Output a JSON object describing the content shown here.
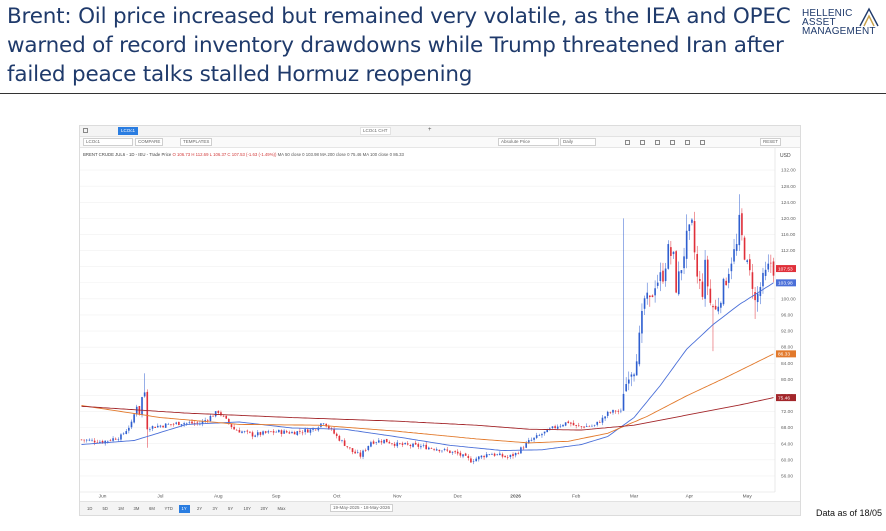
{
  "slide": {
    "title": "Brent: Oil price increased but remained very volatile, as the IEA and OPEC warned of record inventory drawdowns while Trump threatened Iran after failed peace talks stalled Hormuz reopening",
    "logo_lines": [
      "HELLENIC",
      "ASSET",
      "MANAGEMENT"
    ],
    "footnote": "Data as of 18/05"
  },
  "platform": {
    "top_tabs": [
      "LCOc1",
      "LCOc1 CHT"
    ],
    "ticker_field": "LCOc1",
    "compare_label": "COMPARE",
    "templates_label": "TEMPLATES",
    "price_mode": "Absolute Price",
    "interval": "Daily",
    "reset_label": "RESET",
    "legend": {
      "instrument": "BRENT CRUDE JUL6 - 1D - IEU - Trade Price",
      "ohlc": "O 106.73  H 112.69  L 106.37  C 107.53  (-1.63 (-1.49%))",
      "ma_text": "MA 50 close 0  103.98   MA 200 close 0  75.46   MA 100 close 0  86.33"
    },
    "range_buttons": [
      "1D",
      "5D",
      "1M",
      "3M",
      "6M",
      "YTD",
      "1Y",
      "2Y",
      "3Y",
      "5Y",
      "10Y",
      "20Y",
      "Max"
    ],
    "active_range": "1Y",
    "date_range": "19-May-2025 - 18-May-2026"
  },
  "chart_data": {
    "type": "candlestick",
    "y_axis_label": "USD",
    "ylim": [
      52,
      136
    ],
    "y_ticks": [
      56,
      60,
      64,
      68,
      72,
      76,
      80,
      84,
      88,
      92,
      96,
      100,
      104,
      108,
      112,
      116,
      120,
      124,
      128,
      132
    ],
    "x_tick_labels": [
      "Jun",
      "Jul",
      "Aug",
      "Sep",
      "Oct",
      "Nov",
      "Dec",
      "2026",
      "Feb",
      "Mar",
      "Apr",
      "May"
    ],
    "x_tick_index": [
      8,
      30,
      52,
      74,
      97,
      120,
      143,
      165,
      188,
      210,
      231,
      253
    ],
    "n_days": 264,
    "price_anchors": [
      [
        0,
        65
      ],
      [
        8,
        64.5
      ],
      [
        15,
        65.8
      ],
      [
        19,
        69
      ],
      [
        21,
        73.5
      ],
      [
        22,
        71.5
      ],
      [
        23,
        75.5
      ],
      [
        24,
        76.8
      ],
      [
        25,
        68
      ],
      [
        30,
        68.5
      ],
      [
        38,
        69.2
      ],
      [
        45,
        69
      ],
      [
        52,
        72
      ],
      [
        58,
        67.6
      ],
      [
        65,
        66.2
      ],
      [
        74,
        67
      ],
      [
        80,
        66.8
      ],
      [
        88,
        67.5
      ],
      [
        92,
        69.5
      ],
      [
        97,
        65.8
      ],
      [
        103,
        62
      ],
      [
        106,
        61
      ],
      [
        110,
        64.5
      ],
      [
        115,
        64.8
      ],
      [
        120,
        63.8
      ],
      [
        128,
        63.4
      ],
      [
        135,
        62.8
      ],
      [
        143,
        61.5
      ],
      [
        148,
        59.8
      ],
      [
        155,
        61.6
      ],
      [
        162,
        60.6
      ],
      [
        165,
        61.5
      ],
      [
        170,
        64.5
      ],
      [
        175,
        66.4
      ],
      [
        181,
        68.5
      ],
      [
        185,
        69.4
      ],
      [
        188,
        68.2
      ],
      [
        195,
        68.5
      ],
      [
        198,
        70.2
      ],
      [
        200,
        71.5
      ],
      [
        203,
        72.2
      ],
      [
        205,
        71.8
      ],
      [
        206,
        77.5
      ],
      [
        207,
        79
      ],
      [
        208,
        82
      ],
      [
        210,
        83
      ],
      [
        212,
        90
      ],
      [
        214,
        100
      ],
      [
        216,
        99
      ],
      [
        218,
        104
      ],
      [
        221,
        106
      ],
      [
        223,
        112
      ],
      [
        225,
        110
      ],
      [
        226,
        103
      ],
      [
        228,
        108
      ],
      [
        230,
        115
      ],
      [
        232,
        118
      ],
      [
        234,
        105
      ],
      [
        236,
        102
      ],
      [
        237,
        108
      ],
      [
        239,
        99
      ],
      [
        241,
        97
      ],
      [
        243,
        101
      ],
      [
        245,
        105
      ],
      [
        247,
        110
      ],
      [
        249,
        113
      ],
      [
        250,
        119
      ],
      [
        251,
        115
      ],
      [
        253,
        108
      ],
      [
        255,
        104
      ],
      [
        256,
        99
      ],
      [
        258,
        103
      ],
      [
        260,
        106
      ],
      [
        262,
        109
      ],
      [
        263,
        107.5
      ]
    ],
    "spikes": [
      [
        24,
        81.5
      ],
      [
        206,
        120
      ],
      [
        230,
        121
      ],
      [
        250,
        126
      ]
    ],
    "dips": [
      [
        25,
        63
      ],
      [
        240,
        87
      ],
      [
        256,
        95
      ]
    ],
    "moving_averages": [
      {
        "name": "MA 50",
        "color": "#4a6fd8",
        "last": 103.98,
        "anchors": [
          [
            0,
            63.8
          ],
          [
            20,
            64.8
          ],
          [
            40,
            68.8
          ],
          [
            60,
            69.4
          ],
          [
            80,
            67.9
          ],
          [
            100,
            67.6
          ],
          [
            120,
            65.7
          ],
          [
            140,
            63.6
          ],
          [
            160,
            62.3
          ],
          [
            175,
            62.5
          ],
          [
            190,
            63.8
          ],
          [
            200,
            65.8
          ],
          [
            210,
            70.5
          ],
          [
            220,
            78.5
          ],
          [
            230,
            87.5
          ],
          [
            240,
            93.6
          ],
          [
            250,
            98.6
          ],
          [
            263,
            103.98
          ]
        ]
      },
      {
        "name": "MA 100",
        "color": "#e2792b",
        "last": 86.33,
        "anchors": [
          [
            0,
            73.5
          ],
          [
            30,
            70.5
          ],
          [
            60,
            68.8
          ],
          [
            90,
            68.6
          ],
          [
            120,
            67.1
          ],
          [
            150,
            65.2
          ],
          [
            170,
            64.2
          ],
          [
            185,
            64.6
          ],
          [
            200,
            66.6
          ],
          [
            215,
            70.8
          ],
          [
            230,
            75.9
          ],
          [
            245,
            80.5
          ],
          [
            263,
            86.33
          ]
        ]
      },
      {
        "name": "MA 200",
        "color": "#a3262a",
        "last": 75.46,
        "anchors": [
          [
            0,
            73.3
          ],
          [
            40,
            71.6
          ],
          [
            80,
            70.5
          ],
          [
            120,
            69.6
          ],
          [
            150,
            68.6
          ],
          [
            170,
            67.6
          ],
          [
            190,
            67.4
          ],
          [
            210,
            68.6
          ],
          [
            230,
            71.1
          ],
          [
            250,
            73.6
          ],
          [
            263,
            75.46
          ]
        ]
      }
    ],
    "last_price": 107.53,
    "last_price_label": "107.53"
  }
}
